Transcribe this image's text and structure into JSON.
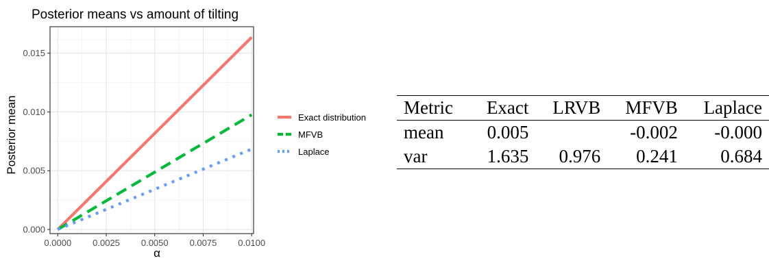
{
  "chart_data": {
    "type": "line",
    "title": "Posterior means vs amount of tilting",
    "xlabel": "α",
    "ylabel": "Posterior mean",
    "xlim": [
      -0.0004,
      0.0101
    ],
    "ylim": [
      -0.00035,
      0.01725
    ],
    "x_ticks": [
      0.0,
      0.0025,
      0.005,
      0.0075,
      0.01
    ],
    "x_tick_labels": [
      "0.0000",
      "0.0025",
      "0.0050",
      "0.0075",
      "0.0100"
    ],
    "y_ticks": [
      0.0,
      0.005,
      0.01,
      0.015
    ],
    "y_tick_labels": [
      "0.000",
      "0.005",
      "0.010",
      "0.015"
    ],
    "grid": true,
    "legend_position": "right",
    "series": [
      {
        "name": "Exact distribution",
        "color": "#F8766D",
        "dash": "solid",
        "x": [
          0.0,
          0.01
        ],
        "y": [
          0.0,
          0.01635
        ]
      },
      {
        "name": "MFVB",
        "color": "#00BA38",
        "dash": "dashed",
        "x": [
          0.0,
          0.01
        ],
        "y": [
          0.0,
          0.00976
        ]
      },
      {
        "name": "Laplace",
        "color": "#619CFF",
        "dash": "dotted",
        "x": [
          0.0,
          0.01
        ],
        "y": [
          0.0,
          0.00684
        ]
      }
    ]
  },
  "table": {
    "headers": [
      "Metric",
      "Exact",
      "LRVB",
      "MFVB",
      "Laplace"
    ],
    "rows": [
      [
        "mean",
        "0.005",
        "",
        "-0.002",
        "-0.000"
      ],
      [
        "var",
        "1.635",
        "0.976",
        "0.241",
        "0.684"
      ]
    ]
  }
}
